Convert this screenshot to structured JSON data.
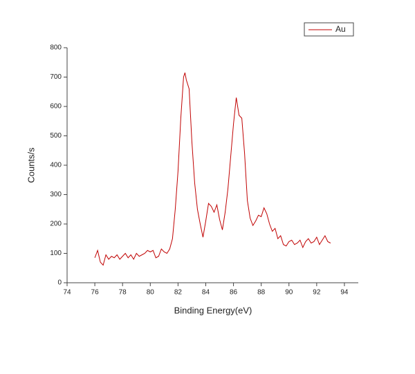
{
  "chart_data": {
    "type": "line",
    "x_label": "Binding Energy(eV)",
    "y_label": "Counts/s",
    "x": [
      76.0,
      76.2,
      76.4,
      76.6,
      76.8,
      77.0,
      77.2,
      77.4,
      77.6,
      77.8,
      78.0,
      78.2,
      78.4,
      78.6,
      78.8,
      79.0,
      79.2,
      79.4,
      79.6,
      79.8,
      80.0,
      80.2,
      80.4,
      80.6,
      80.8,
      81.0,
      81.2,
      81.4,
      81.6,
      81.8,
      82.0,
      82.2,
      82.4,
      82.5,
      82.6,
      82.8,
      83.0,
      83.2,
      83.4,
      83.6,
      83.8,
      84.0,
      84.2,
      84.4,
      84.6,
      84.8,
      85.0,
      85.2,
      85.4,
      85.6,
      85.8,
      86.0,
      86.2,
      86.4,
      86.6,
      86.8,
      87.0,
      87.2,
      87.4,
      87.6,
      87.8,
      88.0,
      88.2,
      88.4,
      88.6,
      88.8,
      89.0,
      89.2,
      89.4,
      89.6,
      89.8,
      90.0,
      90.2,
      90.4,
      90.6,
      90.8,
      91.0,
      91.2,
      91.4,
      91.6,
      91.8,
      92.0,
      92.2,
      92.4,
      92.6,
      92.8,
      93.0
    ],
    "series": [
      {
        "name": "Au",
        "color": "#c00000",
        "values": [
          85,
          110,
          70,
          60,
          95,
          80,
          90,
          85,
          95,
          80,
          90,
          100,
          85,
          95,
          80,
          100,
          90,
          95,
          100,
          110,
          105,
          110,
          85,
          90,
          115,
          105,
          100,
          115,
          150,
          250,
          380,
          560,
          700,
          715,
          690,
          660,
          480,
          340,
          250,
          200,
          155,
          210,
          270,
          260,
          240,
          265,
          215,
          180,
          240,
          320,
          430,
          540,
          630,
          570,
          560,
          440,
          280,
          220,
          195,
          210,
          230,
          225,
          255,
          235,
          200,
          175,
          185,
          150,
          160,
          130,
          125,
          140,
          145,
          130,
          135,
          145,
          120,
          140,
          150,
          135,
          140,
          155,
          130,
          145,
          160,
          140,
          135
        ]
      }
    ],
    "xlim": [
      74,
      95
    ],
    "xticks": [
      74,
      76,
      78,
      80,
      82,
      84,
      86,
      88,
      90,
      92,
      94
    ],
    "ylim": [
      0,
      800
    ],
    "yticks": [
      0,
      100,
      200,
      300,
      400,
      500,
      600,
      700,
      800
    ],
    "legend": "top-right"
  }
}
